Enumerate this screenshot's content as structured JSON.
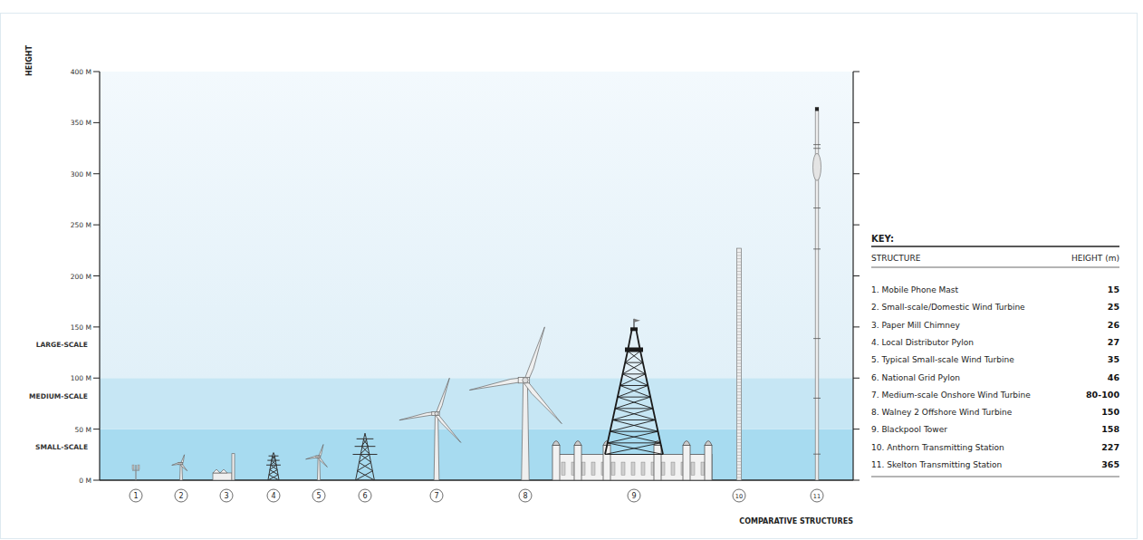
{
  "chart_data": {
    "type": "bar",
    "y_label": "HEIGHT",
    "x_label": "COMPARATIVE STRUCTURES",
    "categories": [
      "1",
      "2",
      "3",
      "4",
      "5",
      "6",
      "7",
      "8",
      "9",
      "10",
      "11"
    ],
    "names": [
      "1. Mobile Phone Mast",
      "2. Small-scale/Domestic Wind Turbine",
      "3. Paper Mill Chimney",
      "4. Local Distributor Pylon",
      "5. Typical Small-scale Wind Turbine",
      "6. National Grid Pylon",
      "7. Medium-scale Onshore Wind Turbine",
      "8. Walney 2 Offshore Wind Turbine",
      "9. Blackpool Tower",
      "10. Anthorn Transmitting Station",
      "11. Skelton Transmitting Station"
    ],
    "values": [
      15,
      25,
      26,
      27,
      35,
      46,
      100,
      150,
      158,
      227,
      365
    ],
    "value_labels": [
      "15",
      "25",
      "26",
      "27",
      "35",
      "46",
      "80-100",
      "150",
      "158",
      "227",
      "365"
    ],
    "ylim": [
      0,
      400
    ],
    "yticks": [
      {
        "value": 0,
        "label": "0 M"
      },
      {
        "value": 50,
        "label": "50 M"
      },
      {
        "value": 100,
        "label": "100 M"
      },
      {
        "value": 150,
        "label": "150 M"
      },
      {
        "value": 200,
        "label": "200 M"
      },
      {
        "value": 250,
        "label": "250 M"
      },
      {
        "value": 300,
        "label": "300 M"
      },
      {
        "value": 350,
        "label": "350 M"
      },
      {
        "value": 400,
        "label": "400 M"
      }
    ],
    "bands": [
      {
        "name": "SMALL-SCALE",
        "from": 0,
        "to": 50
      },
      {
        "name": "MEDIUM-SCALE",
        "from": 50,
        "to": 100
      },
      {
        "name": "LARGE-SCALE",
        "from": 100,
        "to": 400
      }
    ],
    "key_title": "KEY:",
    "key_headers": [
      "STRUCTURE",
      "HEIGHT (m)"
    ],
    "grid": false
  }
}
